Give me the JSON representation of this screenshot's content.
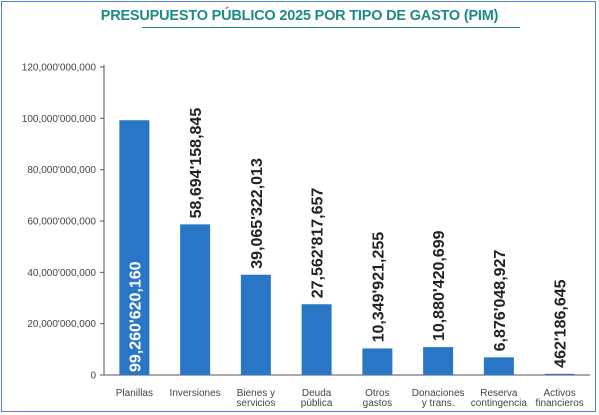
{
  "chart_data": {
    "type": "bar",
    "title": "PRESUPUESTO PÚBLICO 2025 POR TIPO DE GASTO (PIM)",
    "xlabel": "",
    "ylabel": "",
    "ylim": [
      0,
      120000000000
    ],
    "yticks": [
      0,
      20000000000,
      40000000000,
      60000000000,
      80000000000,
      100000000000,
      120000000000
    ],
    "ytick_labels": [
      "0",
      "20,000'000,000",
      "40,000'000,000",
      "60,000'000,000",
      "80,000'000,000",
      "100,000'000,000",
      "120,000'000,000"
    ],
    "grid": false,
    "bar_color": "#2a76c6",
    "title_color": "#1f8a84",
    "categories": [
      [
        "Planillas"
      ],
      [
        "Inversiones"
      ],
      [
        "Bienes y",
        "servicios"
      ],
      [
        "Deuda",
        "pública"
      ],
      [
        "Otros",
        "gastos"
      ],
      [
        "Donaciones",
        "y trans."
      ],
      [
        "Reserva",
        "contingencia"
      ],
      [
        "Activos",
        "financieros"
      ]
    ],
    "values": [
      99260620160,
      58694158845,
      39065322013,
      27562817657,
      10349921255,
      10880420699,
      6876048927,
      462186645
    ],
    "data_labels": [
      "99,260'620,160",
      "58,694'158,845",
      "39,065'322,013",
      "27,562'817,657",
      "10,349'921,255",
      "10,880'420,699",
      "6,876'048,927",
      "462'186,645"
    ]
  }
}
